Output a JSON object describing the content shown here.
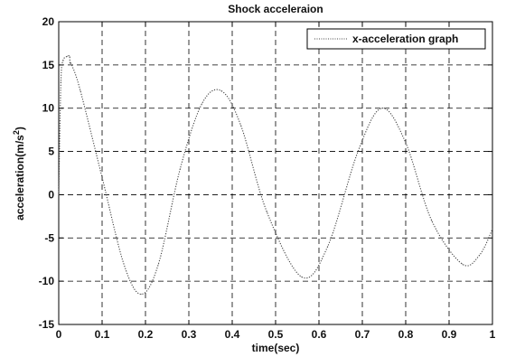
{
  "chart_data": {
    "type": "line",
    "title": "Shock acceleraion",
    "xlabel": "time(sec)",
    "ylabel_main": "acceleration(m/s",
    "ylabel_sup": "2",
    "ylabel_tail": ")",
    "xlim": [
      0,
      1
    ],
    "ylim": [
      -15,
      20
    ],
    "x_ticks": [
      0,
      0.1,
      0.2,
      0.3,
      0.4,
      0.5,
      0.6,
      0.7,
      0.8,
      0.9,
      1
    ],
    "x_tick_labels": [
      "0",
      "0.1",
      "0.2",
      "0.3",
      "0.4",
      "0.5",
      "0.6",
      "0.7",
      "0.8",
      "0.9",
      "1"
    ],
    "y_ticks": [
      -15,
      -10,
      -5,
      0,
      5,
      10,
      15,
      20
    ],
    "y_tick_labels": [
      "-15",
      "-10",
      "-5",
      "0",
      "5",
      "10",
      "15",
      "20"
    ],
    "grid": true,
    "legend_position": "top-right",
    "series": [
      {
        "name": "x-acceleration graph",
        "color": "#444444",
        "style": "dotted",
        "x": [
          0,
          0.005,
          0.01,
          0.02,
          0.025,
          0.026,
          0.03,
          0.05,
          0.1,
          0.15,
          0.19,
          0.23,
          0.28,
          0.33,
          0.375,
          0.42,
          0.48,
          0.56,
          0.62,
          0.69,
          0.745,
          0.8,
          0.86,
          0.93,
          0.97,
          1.0
        ],
        "y": [
          0,
          13,
          15.5,
          16,
          16,
          15.2,
          15,
          12,
          2,
          -8,
          -11.5,
          -8,
          3,
          10.5,
          12,
          8,
          -2,
          -9.5,
          -6,
          5,
          10,
          6,
          -3,
          -8,
          -7,
          -4
        ]
      }
    ]
  }
}
